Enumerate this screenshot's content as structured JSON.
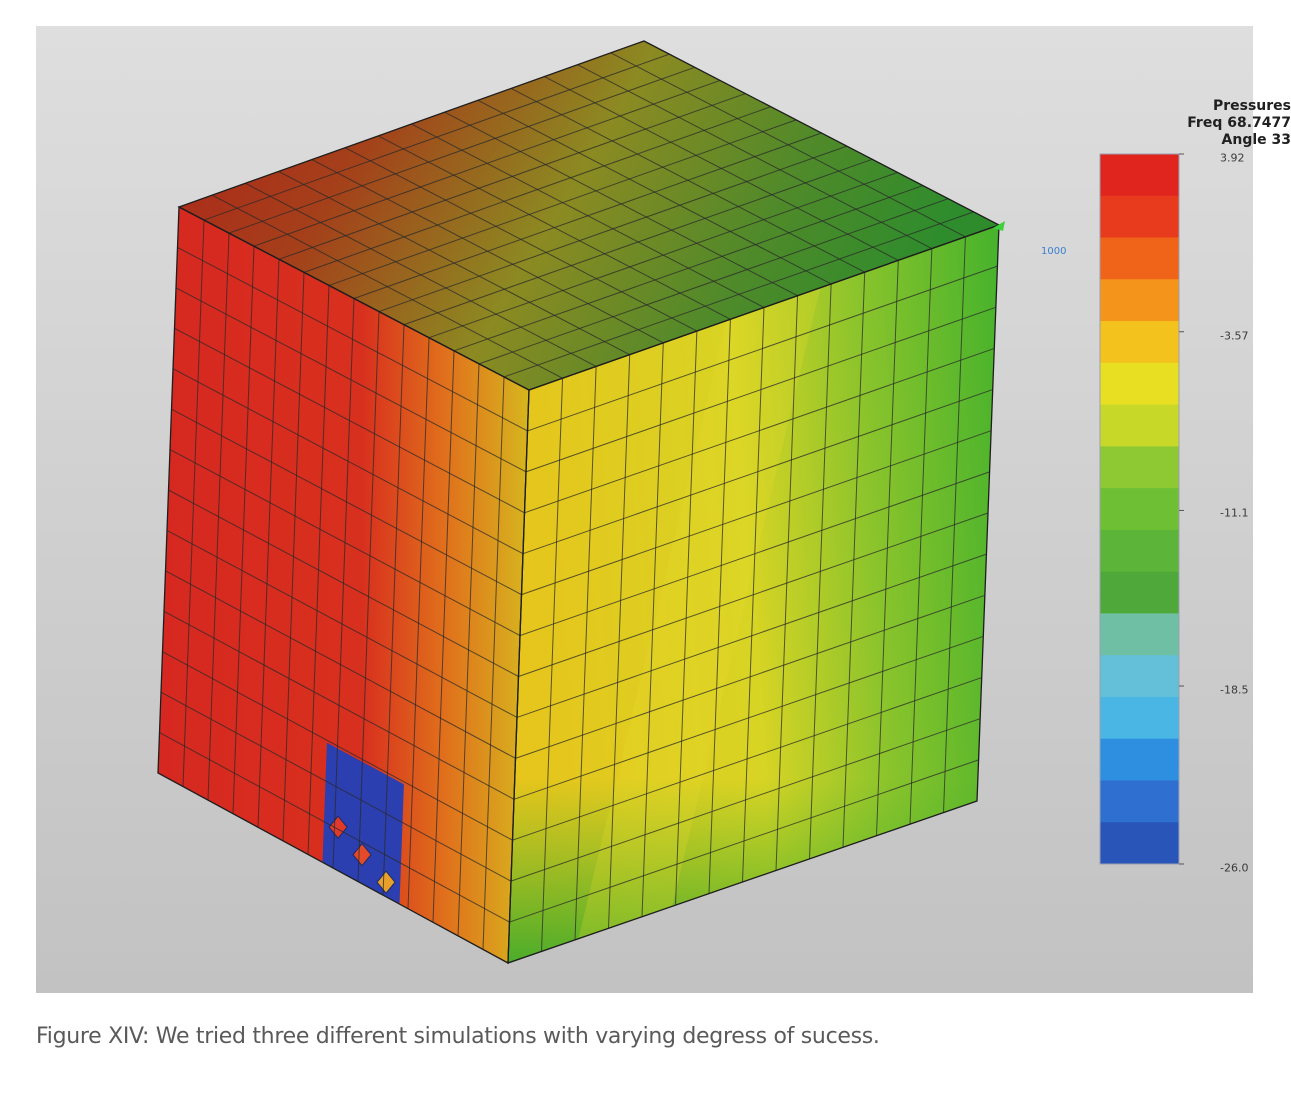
{
  "legend": {
    "title_lines": [
      "Pressures",
      "Freq 68.7477",
      "Angle 33"
    ],
    "ticks": [
      {
        "label": "3.92",
        "value": 3.92
      },
      {
        "label": "-3.57",
        "value": -3.57
      },
      {
        "label": "-11.1",
        "value": -11.1
      },
      {
        "label": "-18.5",
        "value": -18.5
      },
      {
        "label": "-26.0",
        "value": -26.0
      }
    ],
    "colors": [
      "#e0241e",
      "#e83a1c",
      "#f0641a",
      "#f5941a",
      "#f4c21c",
      "#e8df22",
      "#c8d828",
      "#8ec832",
      "#6fbf34",
      "#5cb538",
      "#4fa83a",
      "#6fbfa4",
      "#63c0d8",
      "#4ab6e4",
      "#2e8fe0",
      "#2e6fcf",
      "#2a55b8"
    ]
  },
  "scene": {
    "node_label": "1000",
    "background_colors": [
      "#dcdcdc",
      "#c4c4c4"
    ]
  },
  "caption": "Figure XIV: We tried three different simulations with varying degress of sucess."
}
